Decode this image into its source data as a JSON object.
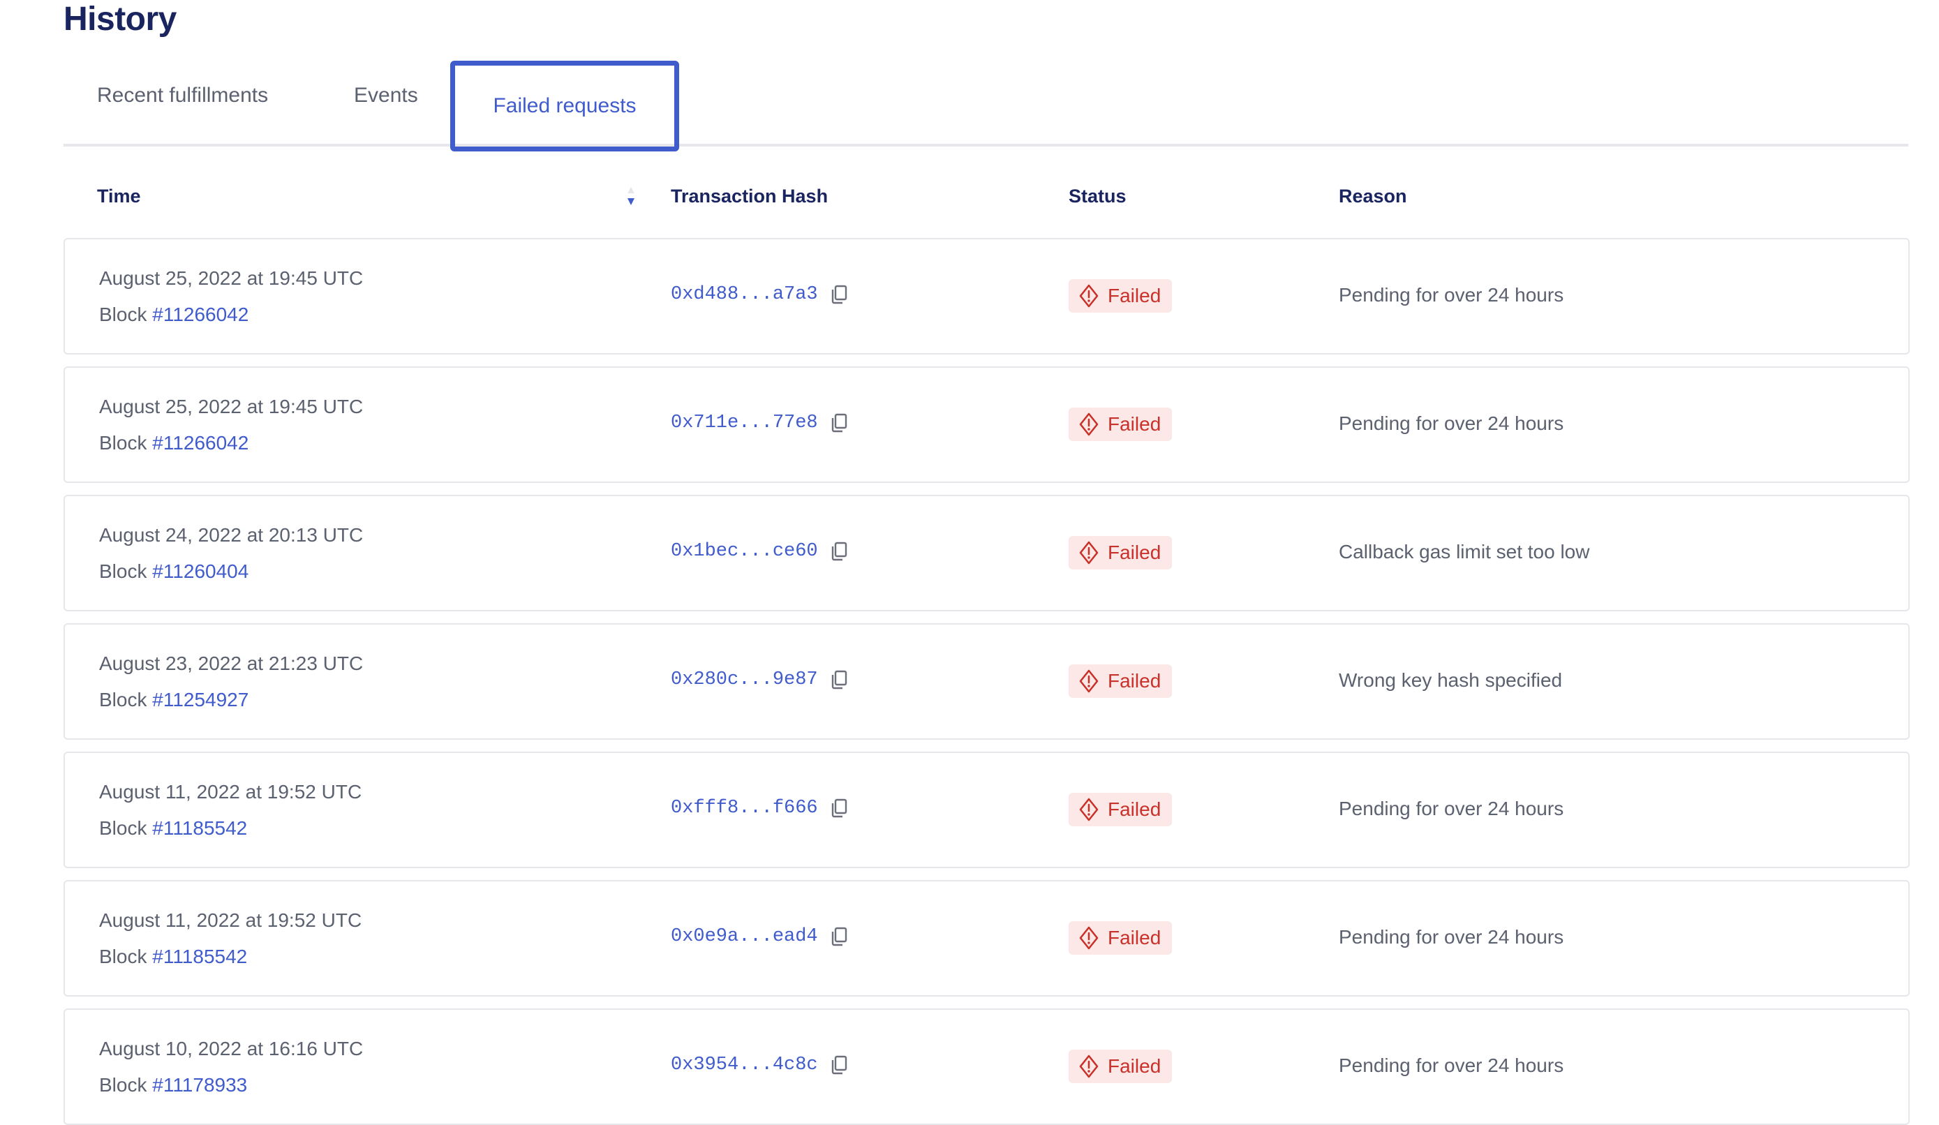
{
  "page": {
    "title": "History"
  },
  "tabs": [
    {
      "label": "Recent fulfillments",
      "active": false
    },
    {
      "label": "Events",
      "active": false
    },
    {
      "label": "Failed requests",
      "active": true
    }
  ],
  "table": {
    "columns": {
      "time": "Time",
      "hash": "Transaction Hash",
      "status": "Status",
      "reason": "Reason"
    },
    "sort": {
      "column": "Time",
      "direction": "descending"
    },
    "block_prefix": "Block",
    "rows": [
      {
        "date": "August 25, 2022 at 19:45 UTC",
        "block": "#11266042",
        "hash": "0xd488...a7a3",
        "status": "Failed",
        "reason": "Pending for over 24 hours"
      },
      {
        "date": "August 25, 2022 at 19:45 UTC",
        "block": "#11266042",
        "hash": "0x711e...77e8",
        "status": "Failed",
        "reason": "Pending for over 24 hours"
      },
      {
        "date": "August 24, 2022 at 20:13 UTC",
        "block": "#11260404",
        "hash": "0x1bec...ce60",
        "status": "Failed",
        "reason": "Callback gas limit set too low"
      },
      {
        "date": "August 23, 2022 at 21:23 UTC",
        "block": "#11254927",
        "hash": "0x280c...9e87",
        "status": "Failed",
        "reason": "Wrong key hash specified"
      },
      {
        "date": "August 11, 2022 at 19:52 UTC",
        "block": "#11185542",
        "hash": "0xfff8...f666",
        "status": "Failed",
        "reason": "Pending for over 24 hours"
      },
      {
        "date": "August 11, 2022 at 19:52 UTC",
        "block": "#11185542",
        "hash": "0x0e9a...ead4",
        "status": "Failed",
        "reason": "Pending for over 24 hours"
      },
      {
        "date": "August 10, 2022 at 16:16 UTC",
        "block": "#11178933",
        "hash": "0x3954...4c8c",
        "status": "Failed",
        "reason": "Pending for over 24 hours"
      }
    ]
  },
  "colors": {
    "accent": "#3f5bcc",
    "heading": "#1a2560",
    "text": "#5c6170",
    "failed_text": "#c9322b",
    "failed_bg": "#fbe8e7",
    "border": "#e6e7ea"
  },
  "icons": {
    "copy": "copy-icon",
    "failed": "warning-diamond-icon",
    "sort": "sort-arrows-icon"
  }
}
